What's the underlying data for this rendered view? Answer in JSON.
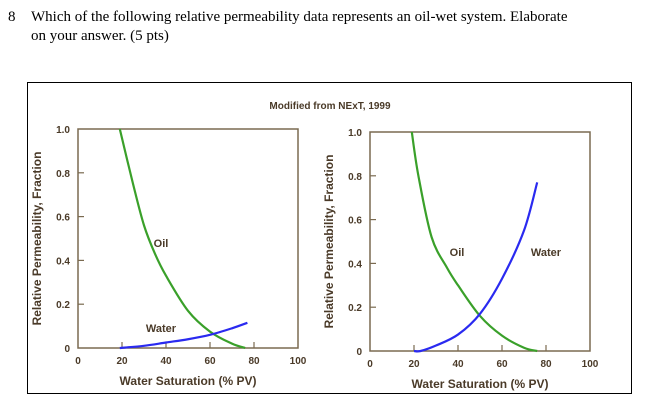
{
  "question": {
    "number": "8",
    "line1": "Which of the following relative permeability data represents an oil-wet system. Elaborate",
    "line2": "on your answer. (5 pts)"
  },
  "figure": {
    "credit": "Modified from NExT, 1999"
  },
  "colors": {
    "oil": "#3aa02a",
    "water": "#2a2af0",
    "axis": "#7a6a50"
  },
  "chart_data": [
    {
      "type": "line",
      "xlabel": "Water Saturation (% PV)",
      "ylabel": "Relative Permeability, Fraction",
      "xlim": [
        0,
        100
      ],
      "ylim": [
        0,
        1.0
      ],
      "xticks": [
        "0",
        "20",
        "40",
        "60",
        "80",
        "100"
      ],
      "yticks": [
        "0",
        "0.2",
        "0.4",
        "0.6",
        "0.8",
        "1.0"
      ],
      "series": [
        {
          "name": "Oil",
          "x": [
            19,
            25,
            30,
            35,
            40,
            50,
            60,
            70,
            76
          ],
          "y": [
            1.0,
            0.75,
            0.56,
            0.43,
            0.33,
            0.17,
            0.075,
            0.02,
            0
          ]
        },
        {
          "name": "Water",
          "x": [
            19,
            30,
            40,
            50,
            60,
            70,
            77
          ],
          "y": [
            0,
            0.01,
            0.025,
            0.04,
            0.06,
            0.09,
            0.115
          ]
        }
      ]
    },
    {
      "type": "line",
      "xlabel": "Water Saturation (% PV)",
      "ylabel": "Relative Permeability, Fraction",
      "xlim": [
        0,
        100
      ],
      "ylim": [
        0,
        1.0
      ],
      "xticks": [
        "0",
        "20",
        "40",
        "60",
        "80",
        "100"
      ],
      "yticks": [
        "0",
        "0.2",
        "0.4",
        "0.6",
        "0.8",
        "1.0"
      ],
      "series": [
        {
          "name": "Oil",
          "x": [
            19,
            22,
            28,
            35,
            40,
            50,
            60,
            70,
            76
          ],
          "y": [
            1.0,
            0.8,
            0.52,
            0.38,
            0.3,
            0.16,
            0.07,
            0.015,
            0
          ]
        },
        {
          "name": "Water",
          "x": [
            20,
            23,
            30,
            40,
            50,
            60,
            70,
            76
          ],
          "y": [
            0,
            0,
            0.025,
            0.075,
            0.17,
            0.33,
            0.55,
            0.77
          ]
        }
      ]
    }
  ]
}
